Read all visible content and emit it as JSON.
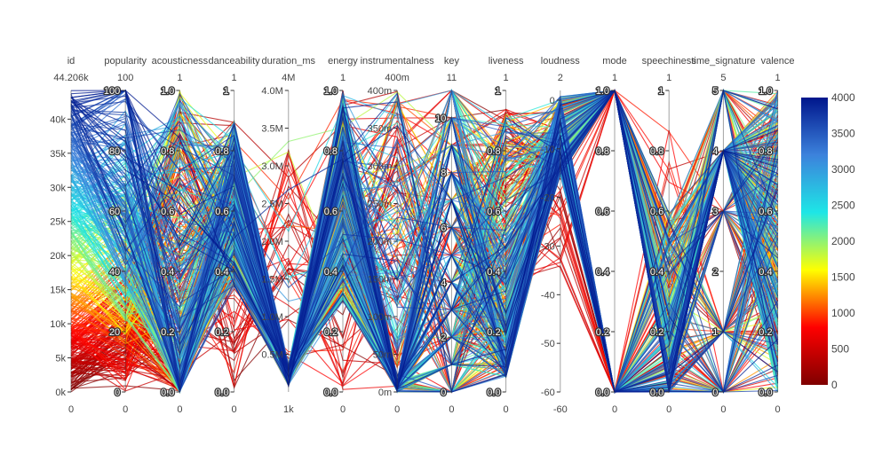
{
  "chart_data": {
    "type": "parallel_coordinates",
    "title": "",
    "color_scale": [
      "#7f0000",
      "#ff0000",
      "#ffff00",
      "#1ee6e6",
      "#3c82dc",
      "#00168c"
    ],
    "colorbar": {
      "min": 0,
      "max": 4000,
      "tick_labels": [
        "0",
        "500",
        "1000",
        "1500",
        "2000",
        "2500",
        "3000",
        "3500",
        "4000"
      ]
    },
    "dimensions": [
      {
        "name": "id",
        "range_top": "44.206k",
        "range_bottom": "0",
        "ticks": [
          "40k",
          "35k",
          "30k",
          "25k",
          "20k",
          "15k",
          "10k",
          "5k",
          "0k"
        ]
      },
      {
        "name": "popularity",
        "range_top": "100",
        "range_bottom": "0",
        "ticks": [
          "100",
          "80",
          "60",
          "40",
          "20",
          "0"
        ]
      },
      {
        "name": "acousticness",
        "range_top": "1",
        "range_bottom": "0",
        "ticks": [
          "1.0",
          "0.8",
          "0.6",
          "0.4",
          "0.2",
          "0.0"
        ]
      },
      {
        "name": "danceability",
        "range_top": "1",
        "range_bottom": "0",
        "ticks": [
          "1",
          "0.8",
          "0.6",
          "0.4",
          "0.2",
          "0.0"
        ]
      },
      {
        "name": "duration_ms",
        "range_top": "4M",
        "range_bottom": "1k",
        "ticks": [
          "4.0M",
          "3.5M",
          "3.0M",
          "2.5M",
          "2.0M",
          "1.5M",
          "1.0M",
          "0.5M"
        ]
      },
      {
        "name": "energy",
        "range_top": "1",
        "range_bottom": "0",
        "ticks": [
          "1.0",
          "0.8",
          "0.6",
          "0.4",
          "0.2",
          "0.0"
        ]
      },
      {
        "name": "instrumentalness",
        "range_top": "400m",
        "range_bottom": "0",
        "ticks": [
          "400m",
          "350m",
          "300m",
          "250m",
          "200m",
          "150m",
          "100m",
          "50m",
          "0m"
        ]
      },
      {
        "name": "key",
        "range_top": "11",
        "range_bottom": "0",
        "ticks": [
          "10",
          "8",
          "6",
          "4",
          "2",
          "0"
        ]
      },
      {
        "name": "liveness",
        "range_top": "1",
        "range_bottom": "0",
        "ticks": [
          "1",
          "0.8",
          "0.6",
          "0.4",
          "0.2",
          "0.0"
        ]
      },
      {
        "name": "loudness",
        "range_top": "2",
        "range_bottom": "-60",
        "ticks": [
          "0",
          "-10",
          "-20",
          "-30",
          "-40",
          "-50",
          "-60"
        ]
      },
      {
        "name": "mode",
        "range_top": "1",
        "range_bottom": "0",
        "ticks": [
          "1.0",
          "0.8",
          "0.6",
          "0.4",
          "0.2",
          "0.0"
        ]
      },
      {
        "name": "speechiness",
        "range_top": "1",
        "range_bottom": "0",
        "ticks": [
          "1",
          "0.8",
          "0.6",
          "0.4",
          "0.2",
          "0.0"
        ]
      },
      {
        "name": "time_signature",
        "range_top": "5",
        "range_bottom": "0",
        "ticks": [
          "5",
          "4",
          "3",
          "2",
          "1",
          "0"
        ]
      },
      {
        "name": "valence",
        "range_top": "1",
        "range_bottom": "0",
        "ticks": [
          "1.0",
          "0.8",
          "0.6",
          "0.4",
          "0.2",
          "0.0"
        ]
      }
    ]
  }
}
